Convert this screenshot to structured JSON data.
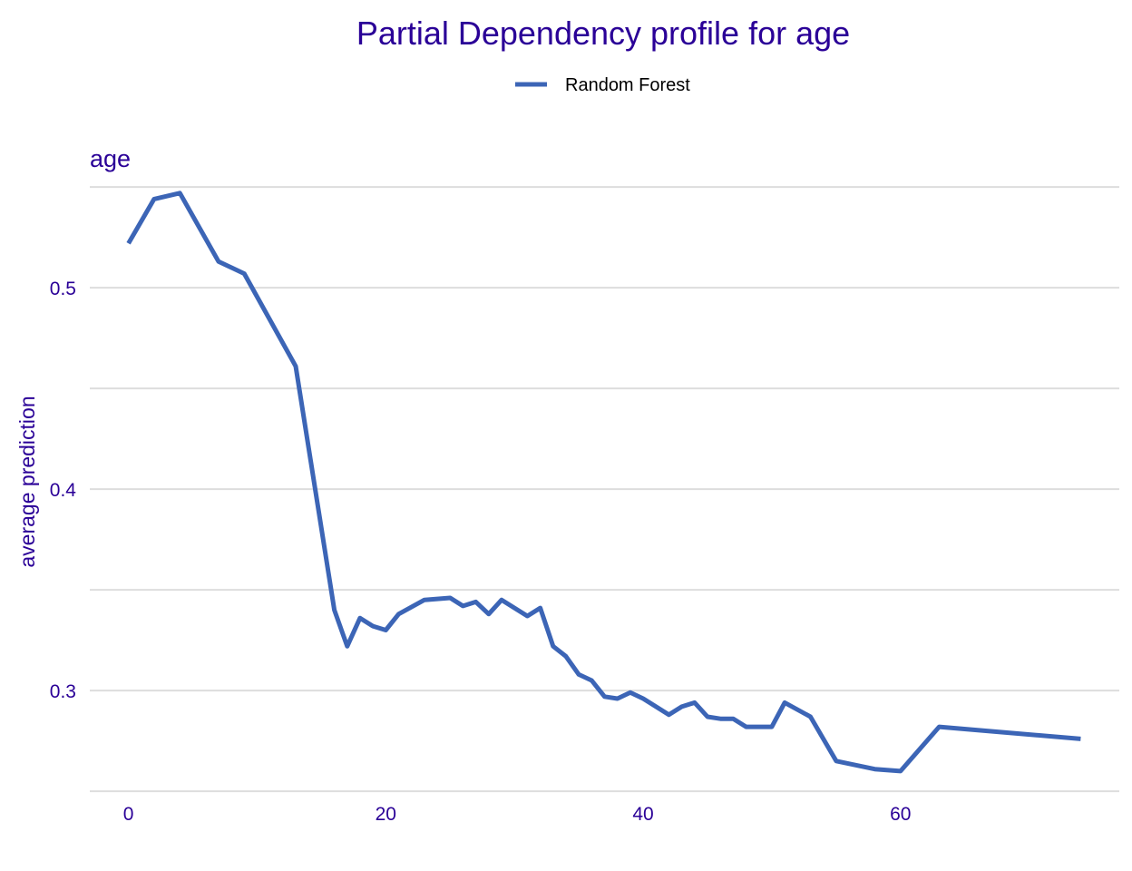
{
  "colors": {
    "text": "#2A0097",
    "line": "#3C65B6",
    "grid": "#DDDDDD",
    "background": "#FFFFFF",
    "legend_text": "#000000"
  },
  "chart_data": {
    "type": "line",
    "title": "Partial Dependency profile for age",
    "panel_label": "age",
    "xlabel": "",
    "ylabel": "average prediction",
    "xlim": [
      -3,
      77
    ],
    "ylim": [
      0.2505,
      0.5505
    ],
    "xticks": [
      0,
      20,
      40,
      60
    ],
    "yticks": [
      0.3,
      0.4,
      0.5
    ],
    "ygrid": [
      0.25,
      0.3,
      0.35,
      0.4,
      0.45,
      0.5,
      0.55
    ],
    "grid": "horizontal",
    "legend_position": "top",
    "series": [
      {
        "name": "Random Forest",
        "x": [
          0,
          2,
          4,
          7,
          9,
          13,
          16,
          17,
          18,
          19,
          20,
          21,
          23,
          25,
          26,
          27,
          28,
          29,
          31,
          32,
          33,
          34,
          35,
          36,
          37,
          38,
          39,
          40,
          42,
          43,
          44,
          45,
          46,
          47,
          48,
          50,
          51,
          53,
          55,
          58,
          60,
          63,
          74
        ],
        "y": [
          0.522,
          0.544,
          0.547,
          0.513,
          0.507,
          0.461,
          0.34,
          0.322,
          0.336,
          0.332,
          0.33,
          0.338,
          0.345,
          0.346,
          0.342,
          0.344,
          0.338,
          0.345,
          0.337,
          0.341,
          0.322,
          0.317,
          0.308,
          0.305,
          0.297,
          0.296,
          0.299,
          0.296,
          0.288,
          0.292,
          0.294,
          0.287,
          0.286,
          0.286,
          0.282,
          0.282,
          0.294,
          0.287,
          0.265,
          0.261,
          0.26,
          0.282,
          0.276
        ]
      }
    ]
  }
}
